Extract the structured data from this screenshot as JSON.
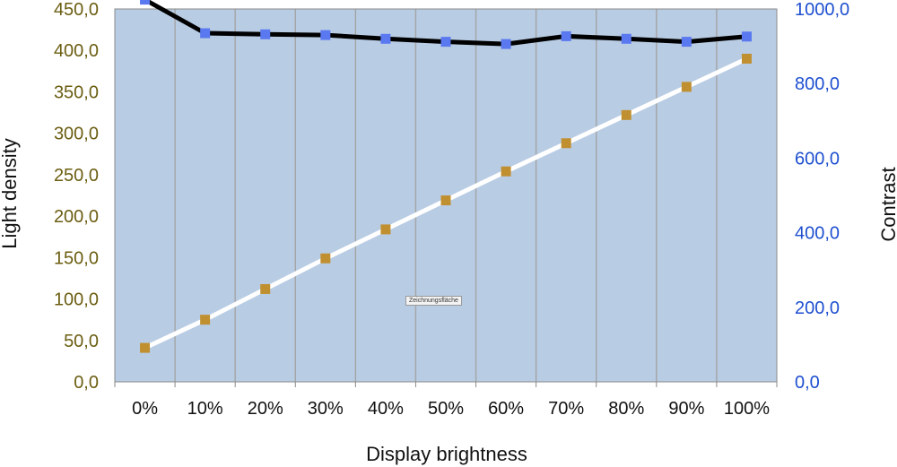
{
  "chart_data": {
    "type": "line",
    "x": [
      "0%",
      "10%",
      "20%",
      "30%",
      "40%",
      "50%",
      "60%",
      "70%",
      "80%",
      "90%",
      "100%"
    ],
    "xlabel": "Display brightness",
    "ylabel": "Light density",
    "y2label": "Contrast",
    "ylim": [
      0,
      450
    ],
    "y2lim": [
      0,
      1000
    ],
    "yticks": [
      "0,0",
      "50,0",
      "100,0",
      "150,0",
      "200,0",
      "250,0",
      "300,0",
      "350,0",
      "400,0",
      "450,0"
    ],
    "y2ticks": [
      "0,0",
      "200,0",
      "400,0",
      "600,0",
      "800,0",
      "1000,0"
    ],
    "grid": true,
    "plot_background": "#b8cce4",
    "series": [
      {
        "axis": "right",
        "line_color": "#000000",
        "marker_color": "#5a78f0",
        "values": [
          1025,
          935,
          932,
          930,
          920,
          912,
          906,
          927,
          920,
          912,
          926
        ]
      },
      {
        "axis": "left",
        "line_color": "#ffffff",
        "marker_color": "#c09030",
        "values": [
          41,
          75,
          112,
          149,
          184,
          219,
          254,
          288,
          322,
          356,
          390
        ]
      }
    ],
    "plot_area_label": "Zeichnungsfläche"
  }
}
